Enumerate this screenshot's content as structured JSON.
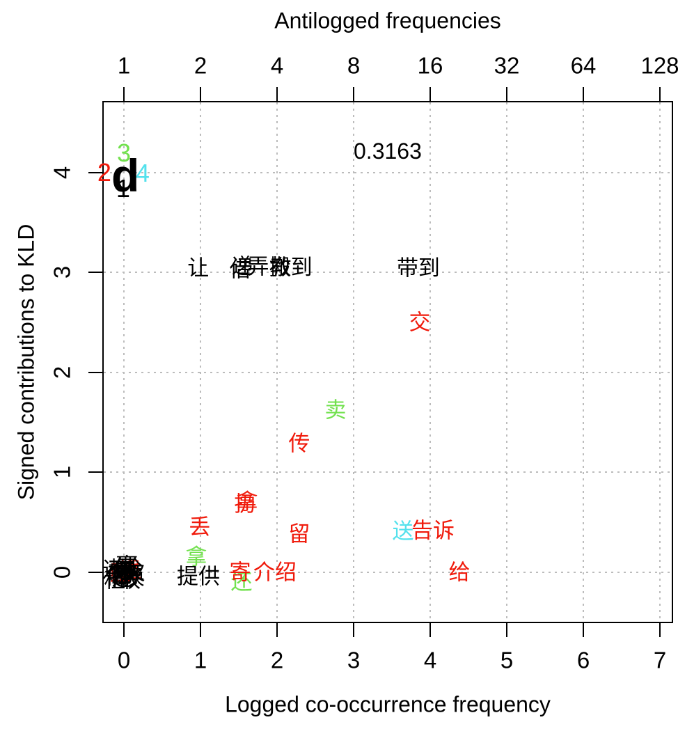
{
  "chart_data": {
    "type": "scatter",
    "top_axis": {
      "label": "Antilogged frequencies",
      "tick_labels": [
        "1",
        "2",
        "4",
        "8",
        "16",
        "32",
        "64",
        "128"
      ],
      "tick_positions": [
        0,
        1,
        2,
        3,
        4,
        5,
        6,
        7
      ]
    },
    "bottom_axis": {
      "label": "Logged co-occurrence frequency",
      "ticks": [
        0,
        1,
        2,
        3,
        4,
        5,
        6,
        7
      ]
    },
    "y_axis": {
      "label": "Signed contributions to KLD",
      "ticks": [
        0,
        1,
        2,
        3,
        4
      ]
    },
    "xlim": [
      -0.28,
      7.18
    ],
    "ylim": [
      -0.47,
      4.72
    ],
    "grid": true,
    "annotation": "0.3163",
    "palette": {
      "black": "#000000",
      "red": "#f0190a",
      "green": "#72e14e",
      "cyan": "#53e1ec",
      "grid": "#bcbcbc"
    },
    "points": [
      {
        "text": "还",
        "x": -0.14,
        "y": 0.02,
        "color": "black"
      },
      {
        "text": "借",
        "x": -0.1,
        "y": -0.04,
        "color": "black"
      },
      {
        "text": "租",
        "x": -0.12,
        "y": -0.08,
        "color": "black"
      },
      {
        "text": "赔",
        "x": -0.04,
        "y": -0.01,
        "color": "red"
      },
      {
        "text": "教",
        "x": -0.06,
        "y": 0.03,
        "color": "black"
      },
      {
        "text": "递",
        "x": -0.02,
        "y": -0.06,
        "color": "black"
      },
      {
        "text": "退",
        "x": 0.09,
        "y": 0.02,
        "color": "red"
      },
      {
        "text": "喂",
        "x": 0.02,
        "y": 0.01,
        "color": "black"
      },
      {
        "text": "偷",
        "x": 0.06,
        "y": -0.03,
        "color": "black"
      },
      {
        "text": "抢",
        "x": 0.1,
        "y": 0.04,
        "color": "black"
      },
      {
        "text": "换",
        "x": 0.13,
        "y": -0.05,
        "color": "black"
      },
      {
        "text": "付",
        "x": 0.0,
        "y": 0.05,
        "color": "black"
      },
      {
        "text": "收",
        "x": 0.08,
        "y": -0.08,
        "color": "black"
      },
      {
        "text": "欠",
        "x": 0.14,
        "y": 0.0,
        "color": "black"
      },
      {
        "text": "输",
        "x": -0.07,
        "y": -0.02,
        "color": "black"
      },
      {
        "text": "赢",
        "x": 0.04,
        "y": 0.06,
        "color": "black"
      },
      {
        "text": "还",
        "x": 1.536,
        "y": -0.1,
        "color": "green"
      },
      {
        "text": "寄",
        "x": 1.518,
        "y": 0.0,
        "color": "red"
      },
      {
        "text": "介绍",
        "x": 1.973,
        "y": 0.0,
        "color": "red"
      },
      {
        "text": "提供",
        "x": 0.973,
        "y": -0.04,
        "color": "black"
      },
      {
        "text": "给",
        "x": 4.382,
        "y": 0.0,
        "color": "red"
      },
      {
        "text": "拿",
        "x": 0.945,
        "y": 0.15,
        "color": "green"
      },
      {
        "text": "留",
        "x": 2.29,
        "y": 0.38,
        "color": "red"
      },
      {
        "text": "送",
        "x": 3.645,
        "y": 0.41,
        "color": "cyan"
      },
      {
        "text": "告诉",
        "x": 4.036,
        "y": 0.42,
        "color": "red"
      },
      {
        "text": "丢",
        "x": 0.99,
        "y": 0.45,
        "color": "red"
      },
      {
        "text": "拿",
        "x": 1.61,
        "y": 0.7,
        "color": "red"
      },
      {
        "text": "扔",
        "x": 1.58,
        "y": 0.68,
        "color": "red"
      },
      {
        "text": "传",
        "x": 2.29,
        "y": 1.29,
        "color": "red"
      },
      {
        "text": "卖",
        "x": 2.764,
        "y": 1.62,
        "color": "green"
      },
      {
        "text": "交",
        "x": 3.864,
        "y": 2.5,
        "color": "red"
      },
      {
        "text": "让",
        "x": 0.97,
        "y": 3.04,
        "color": "black"
      },
      {
        "text": "借",
        "x": 1.52,
        "y": 3.03,
        "color": "black"
      },
      {
        "text": "递",
        "x": 1.545,
        "y": 3.06,
        "color": "black"
      },
      {
        "text": "弄",
        "x": 1.755,
        "y": 3.06,
        "color": "black"
      },
      {
        "text": "教",
        "x": 2.045,
        "y": 3.05,
        "color": "black"
      },
      {
        "text": "搬到",
        "x": 2.18,
        "y": 3.05,
        "color": "black"
      },
      {
        "text": "带到",
        "x": 3.845,
        "y": 3.04,
        "color": "black"
      },
      {
        "text": "0.3163",
        "x": 3.445,
        "y": 4.21,
        "color": "black",
        "size": 32
      },
      {
        "text": "2",
        "x": -0.255,
        "y": 4.0,
        "color": "red",
        "size": 36
      },
      {
        "text": "3",
        "x": 0.0,
        "y": 4.19,
        "color": "green",
        "size": 36
      },
      {
        "text": "1",
        "x": -0.01,
        "y": 3.84,
        "color": "black",
        "size": 36
      },
      {
        "text": "4",
        "x": 0.245,
        "y": 3.99,
        "color": "cyan",
        "size": 36
      },
      {
        "text": "d",
        "x": 0.02,
        "y": 3.97,
        "color": "black",
        "size": 66,
        "bold": true
      }
    ]
  }
}
